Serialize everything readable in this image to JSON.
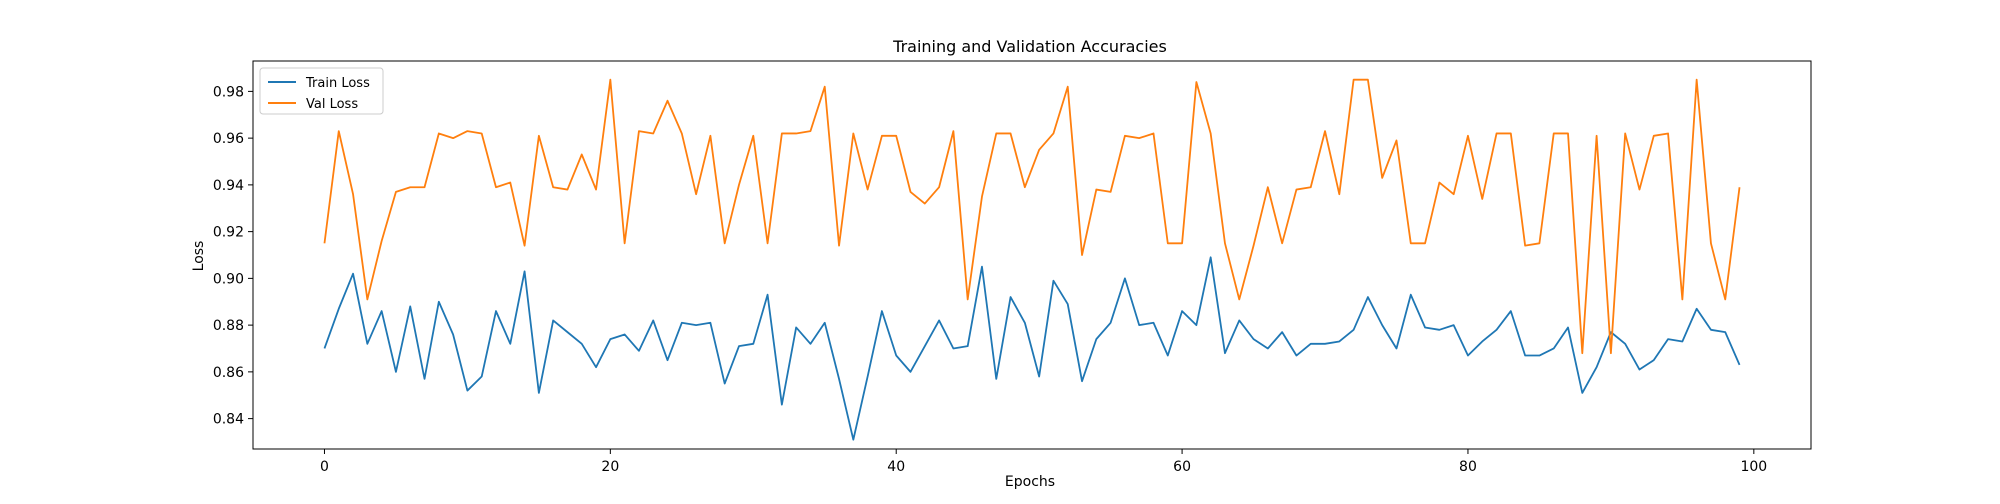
{
  "chart_data": {
    "type": "line",
    "title": "Training and Validation Accuracies",
    "xlabel": "Epochs",
    "ylabel": "Loss",
    "xlim": [
      -5,
      104
    ],
    "ylim": [
      0.827,
      0.993
    ],
    "xticks": [
      0,
      20,
      40,
      60,
      80,
      100
    ],
    "yticks": [
      0.84,
      0.86,
      0.88,
      0.9,
      0.92,
      0.94,
      0.96,
      0.98
    ],
    "ytick_labels": [
      "0.84",
      "0.86",
      "0.88",
      "0.90",
      "0.92",
      "0.94",
      "0.96",
      "0.98"
    ],
    "legend_position": "top-left",
    "grid": false,
    "series": [
      {
        "name": "Train Loss",
        "color": "#1f77b4",
        "x": [
          0,
          1,
          2,
          3,
          4,
          5,
          6,
          7,
          8,
          9,
          10,
          11,
          12,
          13,
          14,
          15,
          16,
          17,
          18,
          19,
          20,
          21,
          22,
          23,
          24,
          25,
          26,
          27,
          28,
          29,
          30,
          31,
          32,
          33,
          34,
          35,
          36,
          37,
          38,
          39,
          40,
          41,
          42,
          43,
          44,
          45,
          46,
          47,
          48,
          49,
          50,
          51,
          52,
          53,
          54,
          55,
          56,
          57,
          58,
          59,
          60,
          61,
          62,
          63,
          64,
          65,
          66,
          67,
          68,
          69,
          70,
          71,
          72,
          73,
          74,
          75,
          76,
          77,
          78,
          79,
          80,
          81,
          82,
          83,
          84,
          85,
          86,
          87,
          88,
          89,
          90,
          91,
          92,
          93,
          94,
          95,
          96,
          97,
          98,
          99
        ],
        "values": [
          0.87,
          0.887,
          0.902,
          0.872,
          0.886,
          0.86,
          0.888,
          0.857,
          0.89,
          0.876,
          0.852,
          0.858,
          0.886,
          0.872,
          0.903,
          0.851,
          0.882,
          0.877,
          0.872,
          0.862,
          0.874,
          0.876,
          0.869,
          0.882,
          0.865,
          0.881,
          0.88,
          0.881,
          0.855,
          0.871,
          0.872,
          0.893,
          0.846,
          0.879,
          0.872,
          0.881,
          0.857,
          0.831,
          0.858,
          0.886,
          0.867,
          0.86,
          0.871,
          0.882,
          0.87,
          0.871,
          0.905,
          0.857,
          0.892,
          0.881,
          0.858,
          0.899,
          0.889,
          0.856,
          0.874,
          0.881,
          0.9,
          0.88,
          0.881,
          0.867,
          0.886,
          0.88,
          0.909,
          0.868,
          0.882,
          0.874,
          0.87,
          0.877,
          0.867,
          0.872,
          0.872,
          0.873,
          0.878,
          0.892,
          0.88,
          0.87,
          0.893,
          0.879,
          0.878,
          0.88,
          0.867,
          0.873,
          0.878,
          0.886,
          0.867,
          0.867,
          0.87,
          0.879,
          0.851,
          0.862,
          0.877,
          0.872,
          0.861,
          0.865,
          0.874,
          0.873,
          0.887,
          0.878,
          0.877,
          0.863
        ]
      },
      {
        "name": "Val Loss",
        "color": "#ff7f0e",
        "x": [
          0,
          1,
          2,
          3,
          4,
          5,
          6,
          7,
          8,
          9,
          10,
          11,
          12,
          13,
          14,
          15,
          16,
          17,
          18,
          19,
          20,
          21,
          22,
          23,
          24,
          25,
          26,
          27,
          28,
          29,
          30,
          31,
          32,
          33,
          34,
          35,
          36,
          37,
          38,
          39,
          40,
          41,
          42,
          43,
          44,
          45,
          46,
          47,
          48,
          49,
          50,
          51,
          52,
          53,
          54,
          55,
          56,
          57,
          58,
          59,
          60,
          61,
          62,
          63,
          64,
          65,
          66,
          67,
          68,
          69,
          70,
          71,
          72,
          73,
          74,
          75,
          76,
          77,
          78,
          79,
          80,
          81,
          82,
          83,
          84,
          85,
          86,
          87,
          88,
          89,
          90,
          91,
          92,
          93,
          94,
          95,
          96,
          97,
          98,
          99
        ],
        "values": [
          0.915,
          0.963,
          0.936,
          0.891,
          0.916,
          0.937,
          0.939,
          0.939,
          0.962,
          0.96,
          0.963,
          0.962,
          0.939,
          0.941,
          0.914,
          0.961,
          0.939,
          0.938,
          0.953,
          0.938,
          0.985,
          0.915,
          0.963,
          0.962,
          0.976,
          0.962,
          0.936,
          0.961,
          0.915,
          0.94,
          0.961,
          0.915,
          0.962,
          0.962,
          0.963,
          0.982,
          0.914,
          0.962,
          0.938,
          0.961,
          0.961,
          0.937,
          0.932,
          0.939,
          0.963,
          0.891,
          0.935,
          0.962,
          0.962,
          0.939,
          0.955,
          0.962,
          0.982,
          0.91,
          0.938,
          0.937,
          0.961,
          0.96,
          0.962,
          0.915,
          0.915,
          0.984,
          0.962,
          0.915,
          0.891,
          0.914,
          0.939,
          0.915,
          0.938,
          0.939,
          0.963,
          0.936,
          0.985,
          0.985,
          0.943,
          0.959,
          0.915,
          0.915,
          0.941,
          0.936,
          0.961,
          0.934,
          0.962,
          0.962,
          0.914,
          0.915,
          0.962,
          0.962,
          0.868,
          0.961,
          0.868,
          0.962,
          0.938,
          0.961,
          0.962,
          0.891,
          0.985,
          0.915,
          0.891,
          0.939
        ]
      }
    ]
  }
}
